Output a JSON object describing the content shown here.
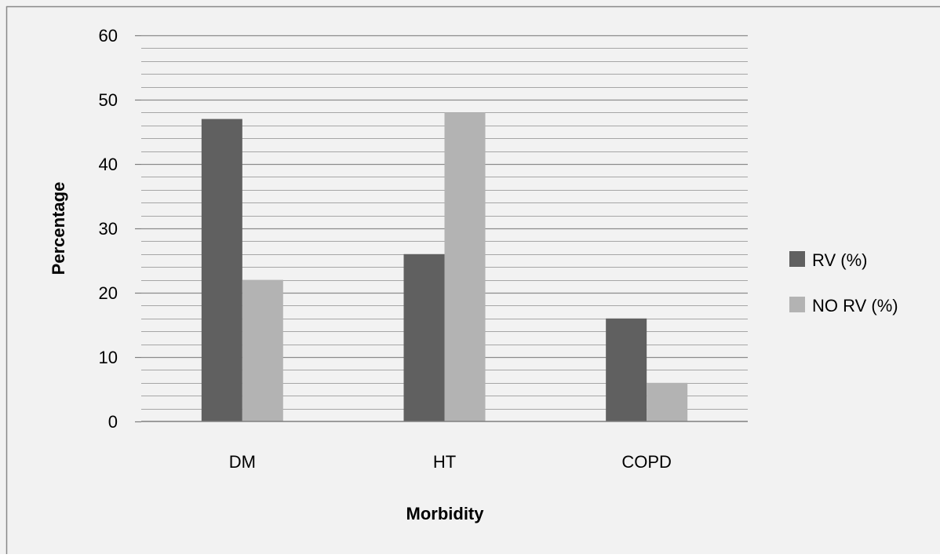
{
  "chart_data": {
    "type": "bar",
    "categories": [
      "DM",
      "HT",
      "COPD"
    ],
    "series": [
      {
        "name": "RV (%)",
        "values": [
          47,
          26,
          16
        ],
        "color": "#606060"
      },
      {
        "name": "NO RV (%)",
        "values": [
          22,
          48,
          6
        ],
        "color": "#b3b3b3"
      }
    ],
    "xlabel": "Morbidity",
    "ylabel": "Percentage",
    "ylim": [
      0,
      60
    ],
    "yticks": [
      0,
      10,
      20,
      30,
      40,
      50,
      60
    ],
    "minor_gridlines_per_major": 5,
    "grid": true,
    "legend_position": "right"
  },
  "style": {
    "background": "#f2f2f2",
    "frame_color": "#888888",
    "grid_color": "#8c8c8c"
  }
}
